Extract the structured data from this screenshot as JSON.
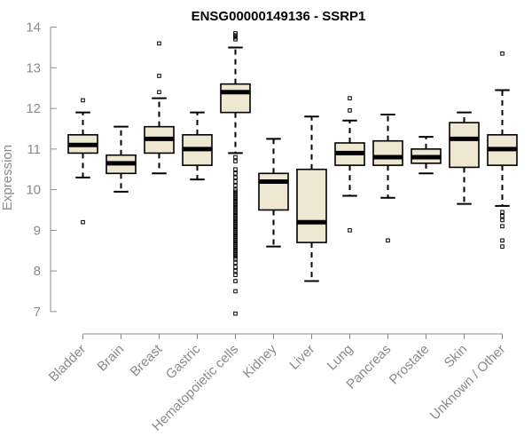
{
  "chart_data": {
    "type": "boxplot",
    "title": "ENSG00000149136 - SSRP1",
    "xlabel": "",
    "ylabel": "Expression",
    "ylim": [
      6.8,
      14.1
    ],
    "yticks": [
      7,
      8,
      9,
      10,
      11,
      12,
      13,
      14
    ],
    "grid": false,
    "legend": "none",
    "colors": {
      "box_fill": "#eee8d2",
      "stroke": "#000000",
      "axis": "#8a8a8a"
    },
    "categories": [
      "Bladder",
      "Brain",
      "Breast",
      "Gastric",
      "Hematopoietic cells",
      "Kidney",
      "Liver",
      "Lung",
      "Pancreas",
      "Prostate",
      "Skin",
      "Unknown / Other"
    ],
    "boxes": [
      {
        "whisker_low": 10.3,
        "q1": 10.9,
        "median": 11.1,
        "q3": 11.35,
        "whisker_high": 11.9,
        "outliers": [
          12.2,
          9.2
        ]
      },
      {
        "whisker_low": 9.95,
        "q1": 10.4,
        "median": 10.65,
        "q3": 10.85,
        "whisker_high": 11.55,
        "outliers": []
      },
      {
        "whisker_low": 10.4,
        "q1": 10.9,
        "median": 11.25,
        "q3": 11.55,
        "whisker_high": 12.25,
        "outliers": [
          13.6,
          12.8,
          12.4
        ]
      },
      {
        "whisker_low": 10.25,
        "q1": 10.6,
        "median": 11.0,
        "q3": 11.35,
        "whisker_high": 11.9,
        "outliers": []
      },
      {
        "whisker_low": 10.9,
        "q1": 11.9,
        "median": 12.4,
        "q3": 12.6,
        "whisker_high": 13.5,
        "outliers": [
          13.85,
          13.8,
          13.75,
          13.7,
          10.8,
          10.7,
          10.5,
          10.4,
          10.3,
          10.2,
          10.1,
          10.0,
          9.95,
          9.9,
          9.85,
          9.8,
          9.75,
          9.7,
          9.65,
          9.6,
          9.55,
          9.5,
          9.45,
          9.4,
          9.35,
          9.3,
          9.25,
          9.2,
          9.15,
          9.1,
          9.05,
          9.0,
          8.95,
          8.9,
          8.85,
          8.8,
          8.75,
          8.7,
          8.65,
          8.6,
          8.55,
          8.5,
          8.45,
          8.4,
          8.35,
          8.3,
          8.2,
          8.1,
          8.0,
          7.9,
          7.75,
          7.5,
          6.95
        ]
      },
      {
        "whisker_low": 8.6,
        "q1": 9.5,
        "median": 10.2,
        "q3": 10.4,
        "whisker_high": 11.25,
        "outliers": []
      },
      {
        "whisker_low": 7.75,
        "q1": 8.7,
        "median": 9.2,
        "q3": 10.5,
        "whisker_high": 11.8,
        "outliers": []
      },
      {
        "whisker_low": 9.85,
        "q1": 10.6,
        "median": 10.9,
        "q3": 11.15,
        "whisker_high": 11.7,
        "outliers": [
          12.25,
          11.95,
          9.0
        ]
      },
      {
        "whisker_low": 9.8,
        "q1": 10.6,
        "median": 10.8,
        "q3": 11.2,
        "whisker_high": 11.85,
        "outliers": [
          8.75
        ]
      },
      {
        "whisker_low": 10.4,
        "q1": 10.65,
        "median": 10.8,
        "q3": 11.0,
        "whisker_high": 11.3,
        "outliers": []
      },
      {
        "whisker_low": 9.65,
        "q1": 10.55,
        "median": 11.25,
        "q3": 11.65,
        "whisker_high": 11.9,
        "outliers": []
      },
      {
        "whisker_low": 9.6,
        "q1": 10.6,
        "median": 11.0,
        "q3": 11.35,
        "whisker_high": 12.45,
        "outliers": [
          13.35,
          9.45,
          9.35,
          9.25,
          9.1,
          8.75,
          8.6
        ]
      }
    ]
  }
}
